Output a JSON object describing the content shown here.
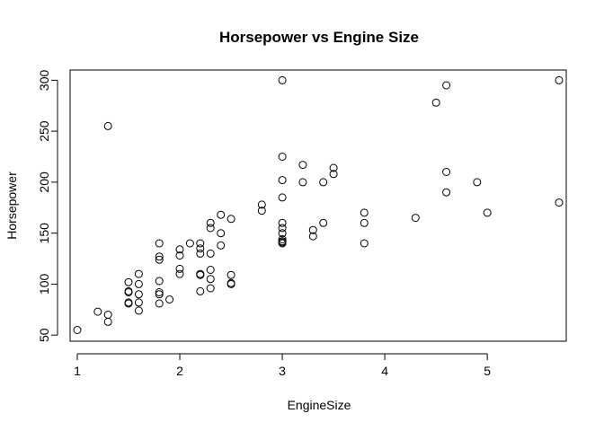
{
  "chart_data": {
    "type": "scatter",
    "title": "Horsepower vs Engine Size",
    "xlabel": "EngineSize",
    "ylabel": "Horsepower",
    "xlim": [
      0.93,
      5.77
    ],
    "ylim": [
      44,
      310
    ],
    "xticks": [
      1,
      2,
      3,
      4,
      5
    ],
    "yticks": [
      50,
      100,
      150,
      200,
      250,
      300
    ],
    "grid": false,
    "legend": "none",
    "points": [
      [
        1.0,
        55
      ],
      [
        1.2,
        73
      ],
      [
        1.3,
        70
      ],
      [
        1.3,
        63
      ],
      [
        1.3,
        255
      ],
      [
        1.5,
        102
      ],
      [
        1.5,
        93
      ],
      [
        1.5,
        92
      ],
      [
        1.5,
        82
      ],
      [
        1.5,
        81
      ],
      [
        1.6,
        110
      ],
      [
        1.6,
        100
      ],
      [
        1.6,
        90
      ],
      [
        1.6,
        82
      ],
      [
        1.6,
        74
      ],
      [
        1.8,
        140
      ],
      [
        1.8,
        127
      ],
      [
        1.8,
        124
      ],
      [
        1.8,
        103
      ],
      [
        1.8,
        92
      ],
      [
        1.8,
        90
      ],
      [
        1.8,
        81
      ],
      [
        1.9,
        85
      ],
      [
        2.0,
        134
      ],
      [
        2.0,
        128
      ],
      [
        2.0,
        115
      ],
      [
        2.0,
        110
      ],
      [
        2.1,
        140
      ],
      [
        2.2,
        140
      ],
      [
        2.2,
        135
      ],
      [
        2.2,
        130
      ],
      [
        2.2,
        110
      ],
      [
        2.2,
        109
      ],
      [
        2.2,
        93
      ],
      [
        2.3,
        160
      ],
      [
        2.3,
        155
      ],
      [
        2.3,
        130
      ],
      [
        2.3,
        114
      ],
      [
        2.3,
        105
      ],
      [
        2.3,
        96
      ],
      [
        2.4,
        168
      ],
      [
        2.4,
        150
      ],
      [
        2.4,
        138
      ],
      [
        2.5,
        164
      ],
      [
        2.5,
        109
      ],
      [
        2.5,
        101
      ],
      [
        2.5,
        100
      ],
      [
        2.8,
        178
      ],
      [
        2.8,
        172
      ],
      [
        3.0,
        300
      ],
      [
        3.0,
        225
      ],
      [
        3.0,
        202
      ],
      [
        3.0,
        185
      ],
      [
        3.0,
        160
      ],
      [
        3.0,
        155
      ],
      [
        3.0,
        150
      ],
      [
        3.0,
        144
      ],
      [
        3.0,
        142
      ],
      [
        3.0,
        141
      ],
      [
        3.0,
        140
      ],
      [
        3.2,
        217
      ],
      [
        3.2,
        200
      ],
      [
        3.3,
        153
      ],
      [
        3.3,
        147
      ],
      [
        3.4,
        200
      ],
      [
        3.4,
        160
      ],
      [
        3.5,
        214
      ],
      [
        3.5,
        208
      ],
      [
        3.8,
        170
      ],
      [
        3.8,
        160
      ],
      [
        3.8,
        140
      ],
      [
        4.3,
        165
      ],
      [
        4.5,
        278
      ],
      [
        4.6,
        295
      ],
      [
        4.6,
        210
      ],
      [
        4.6,
        190
      ],
      [
        4.9,
        200
      ],
      [
        5.0,
        170
      ],
      [
        5.7,
        300
      ],
      [
        5.7,
        180
      ]
    ]
  }
}
